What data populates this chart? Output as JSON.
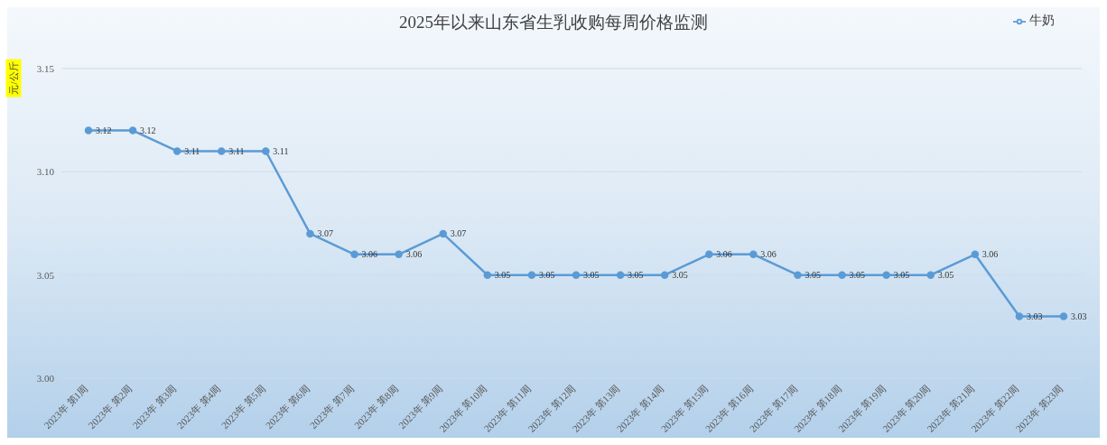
{
  "chart_data": {
    "type": "line",
    "title": "2025年以来山东省生乳收购每周价格监测",
    "ylabel": "元/公斤",
    "categories": [
      "2023年 第1周",
      "2023年 第2周",
      "2023年 第3周",
      "2023年 第4周",
      "2023年 第5周",
      "2023年 第6周",
      "2023年 第7周",
      "2023年 第8周",
      "2023年 第9周",
      "2023年 第10周",
      "2023年 第11周",
      "2023年 第12周",
      "2023年 第13周",
      "2023年 第14周",
      "2023年 第15周",
      "2023年 第16周",
      "2023年 第17周",
      "2023年 第18周",
      "2023年 第19周",
      "2023年 第20周",
      "2023年 第21周",
      "2023年 第22周",
      "2023年 第23周"
    ],
    "series": [
      {
        "name": "牛奶",
        "color": "#5b9bd5",
        "values": [
          3.12,
          3.12,
          3.11,
          3.11,
          3.11,
          3.07,
          3.06,
          3.06,
          3.07,
          3.05,
          3.05,
          3.05,
          3.05,
          3.05,
          3.06,
          3.06,
          3.05,
          3.05,
          3.05,
          3.05,
          3.06,
          3.03,
          3.03
        ]
      }
    ],
    "ylim": [
      3.0,
      3.15
    ],
    "yticks": [
      {
        "value": 3.0,
        "label": "3.00"
      },
      {
        "value": 3.05,
        "label": "3.05"
      },
      {
        "value": 3.1,
        "label": "3.10"
      },
      {
        "value": 3.15,
        "label": "3.15"
      }
    ],
    "grid": "y",
    "legend": "top right",
    "marker": "circle",
    "line_style": "solid",
    "data_labels": true
  }
}
